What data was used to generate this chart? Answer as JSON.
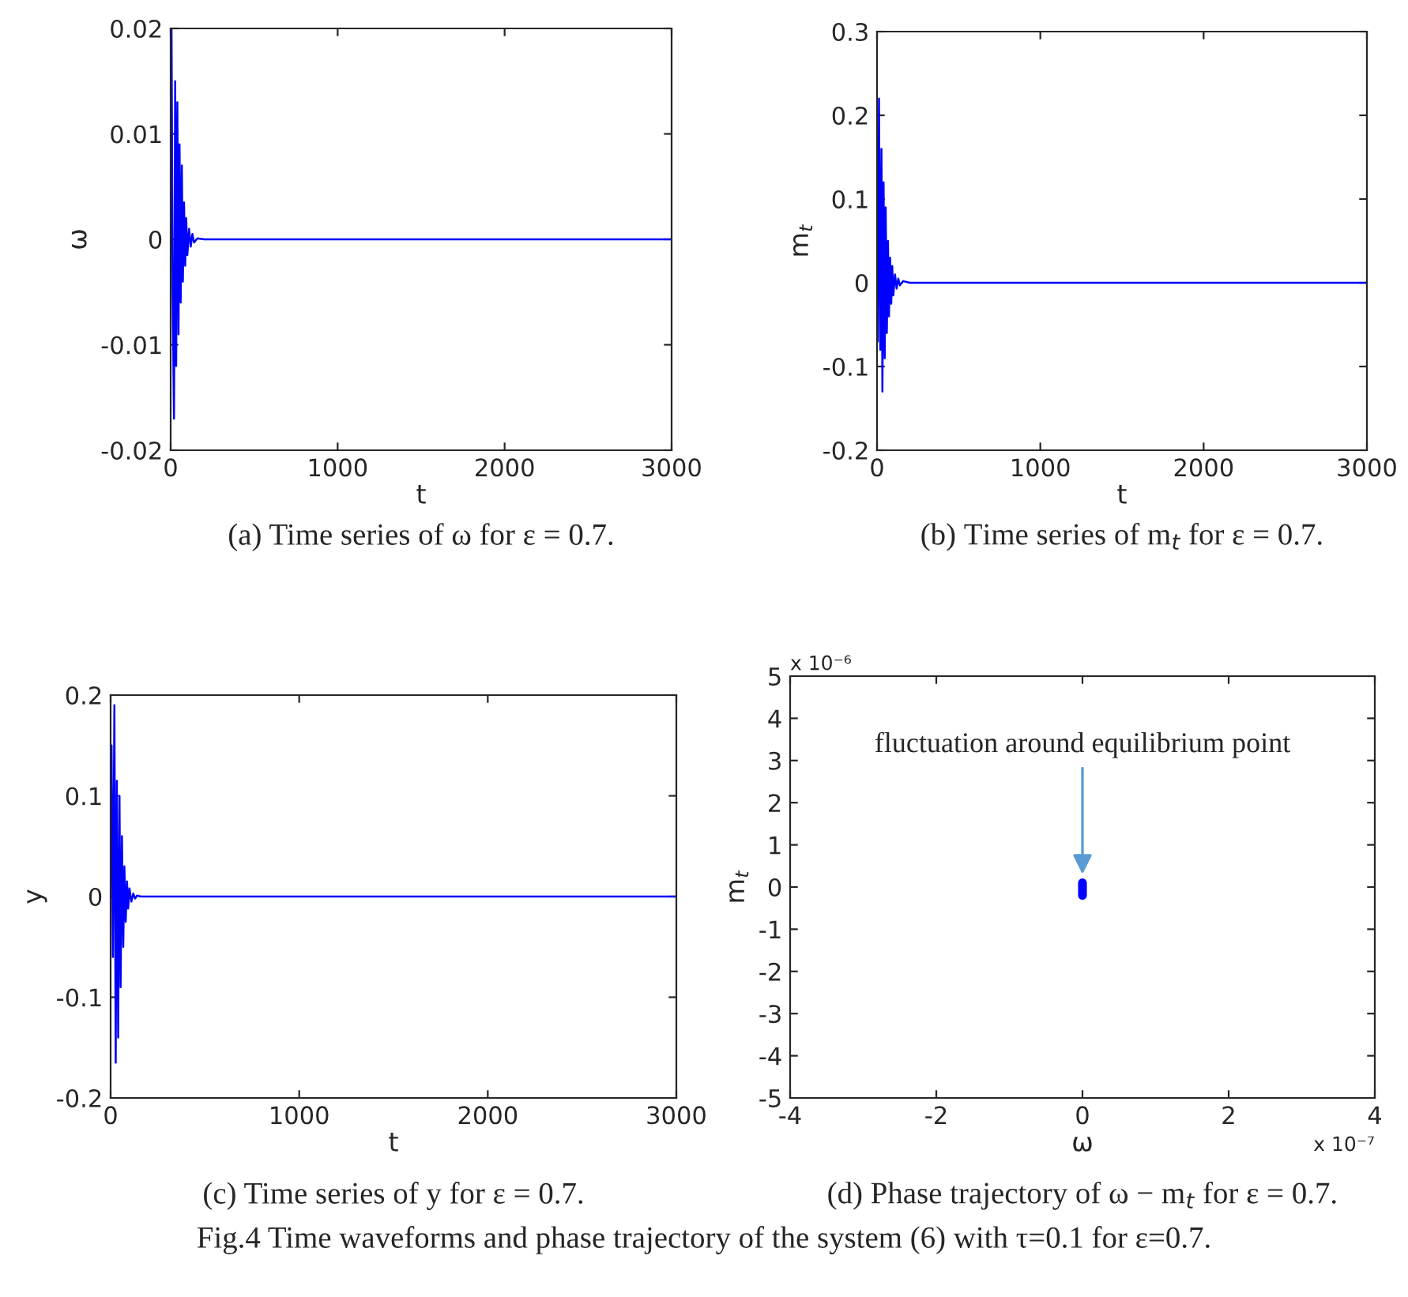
{
  "chart_data": [
    {
      "type": "line",
      "title": "(a) Time series of ω for ε = 0.7.",
      "xlabel": "t",
      "ylabel": "ω",
      "x": [
        0,
        5,
        12,
        20,
        27,
        33,
        40,
        47,
        53,
        60,
        67,
        73,
        80,
        87,
        93,
        100,
        110,
        120,
        130,
        140,
        160,
        200,
        3000
      ],
      "series": [
        {
          "color": "#0000ff",
          "values": [
            0.003,
            0.02,
            -0.005,
            -0.017,
            0.015,
            -0.012,
            0.013,
            -0.009,
            0.009,
            -0.006,
            0.007,
            -0.004,
            0.0035,
            -0.0025,
            0.002,
            -0.0015,
            0.001,
            -0.0007,
            0.0005,
            -0.0003,
            0.0001,
            0,
            0
          ]
        }
      ],
      "xlim": [
        0,
        3000
      ],
      "xticks": [
        0,
        1000,
        2000,
        3000
      ],
      "ylim": [
        -0.02,
        0.02
      ],
      "yticks": [
        -0.02,
        -0.01,
        0,
        0.01,
        0.02
      ]
    },
    {
      "type": "line",
      "title": "(b) Time series of m$_{t}$ for ε = 0.7.",
      "xlabel": "t",
      "ylabel": "m$_{t}$",
      "x": [
        0,
        5,
        12,
        20,
        27,
        33,
        40,
        47,
        53,
        60,
        67,
        73,
        80,
        87,
        93,
        100,
        110,
        120,
        130,
        140,
        160,
        200,
        3000
      ],
      "series": [
        {
          "color": "#0000ff",
          "values": [
            0.03,
            -0.07,
            0.22,
            -0.08,
            0.16,
            -0.13,
            0.12,
            -0.09,
            0.09,
            -0.06,
            0.05,
            -0.04,
            0.03,
            -0.025,
            0.02,
            -0.015,
            0.01,
            -0.007,
            0.005,
            -0.003,
            0.002,
            0,
            0
          ]
        }
      ],
      "xlim": [
        0,
        3000
      ],
      "xticks": [
        0,
        1000,
        2000,
        3000
      ],
      "ylim": [
        -0.2,
        0.3
      ],
      "yticks": [
        -0.2,
        -0.1,
        0,
        0.1,
        0.2,
        0.3
      ]
    },
    {
      "type": "line",
      "title": "(c) Time series of y for ε = 0.7.",
      "xlabel": "t",
      "ylabel": "y",
      "x": [
        0,
        5,
        12,
        20,
        27,
        33,
        40,
        47,
        53,
        60,
        67,
        73,
        80,
        87,
        93,
        100,
        110,
        120,
        130,
        140,
        160,
        200,
        3000
      ],
      "series": [
        {
          "color": "#0000ff",
          "values": [
            0.02,
            0.15,
            -0.06,
            0.19,
            -0.165,
            0.115,
            -0.14,
            0.1,
            -0.09,
            0.06,
            -0.05,
            0.03,
            -0.025,
            0.015,
            -0.012,
            0.008,
            -0.005,
            0.003,
            -0.002,
            0.001,
            0,
            0,
            0
          ]
        }
      ],
      "xlim": [
        0,
        3000
      ],
      "xticks": [
        0,
        1000,
        2000,
        3000
      ],
      "ylim": [
        -0.2,
        0.2
      ],
      "yticks": [
        -0.2,
        -0.1,
        0,
        0.1,
        0.2
      ]
    },
    {
      "type": "line",
      "title": "(d) Phase trajectory of ω − m$_{t}$ for ε = 0.7.",
      "xlabel": "ω",
      "ylabel": "m$_{t}$",
      "x": [
        0,
        0,
        0,
        0,
        0,
        0
      ],
      "series": [
        {
          "color": "#0000ff",
          "values": [
            0.1,
            -0.1,
            0.1,
            -0.2,
            0.1,
            0
          ]
        }
      ],
      "xlim": [
        -4,
        4
      ],
      "xticks": [
        -4,
        -2,
        0,
        2,
        4
      ],
      "ylim": [
        -5,
        5
      ],
      "yticks": [
        -5,
        -4,
        -3,
        -2,
        -1,
        0,
        1,
        2,
        3,
        4,
        5
      ],
      "annotations": [
        {
          "text": "fluctuation around equilibrium point",
          "x": 0,
          "y": 0.2
        },
        "x 10⁻⁷",
        "x 10⁻⁶",
        "Fig.4 Time waveforms and phase trajectory of the system (6) with τ=0.1 for ε=0.7."
      ]
    }
  ]
}
